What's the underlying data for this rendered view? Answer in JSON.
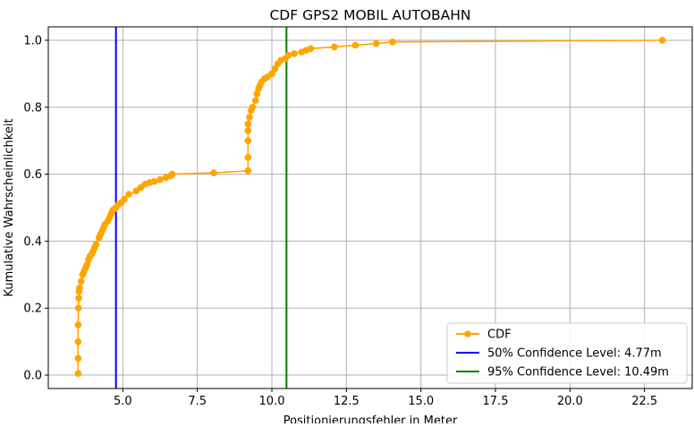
{
  "chart_data": {
    "type": "line",
    "title": "CDF GPS2 MOBIL AUTOBAHN",
    "xlabel": "Positionierungsfehler in Meter",
    "ylabel": "Kumulative Wahrscheinlichkeit",
    "xlim": [
      2.5,
      24.1
    ],
    "ylim": [
      -0.04,
      1.04
    ],
    "grid": true,
    "legend_position": "lower-right",
    "x_ticks": [
      "5.0",
      "7.5",
      "10.0",
      "12.5",
      "15.0",
      "17.5",
      "20.0",
      "22.5"
    ],
    "x_tick_values": [
      5.0,
      7.5,
      10.0,
      12.5,
      15.0,
      17.5,
      20.0,
      22.5
    ],
    "y_ticks": [
      "0.0",
      "0.2",
      "0.4",
      "0.6",
      "0.8",
      "1.0"
    ],
    "y_tick_values": [
      0.0,
      0.2,
      0.4,
      0.6,
      0.8,
      1.0
    ],
    "series": [
      {
        "name": "CDF",
        "color": "#FFA500",
        "marker": "circle",
        "x": [
          3.5,
          3.5,
          3.5,
          3.5,
          3.51,
          3.52,
          3.53,
          3.55,
          3.6,
          3.65,
          3.7,
          3.75,
          3.8,
          3.85,
          3.9,
          3.95,
          4.0,
          4.05,
          4.1,
          4.2,
          4.25,
          4.3,
          4.35,
          4.4,
          4.5,
          4.55,
          4.6,
          4.65,
          4.7,
          4.77,
          4.85,
          4.95,
          5.05,
          5.2,
          5.45,
          5.6,
          5.75,
          5.9,
          6.05,
          6.25,
          6.45,
          6.6,
          6.65,
          8.05,
          9.2,
          9.2,
          9.2,
          9.2,
          9.2,
          9.25,
          9.3,
          9.35,
          9.45,
          9.5,
          9.55,
          9.6,
          9.65,
          9.75,
          9.85,
          10.0,
          10.1,
          10.2,
          10.3,
          10.45,
          10.55,
          10.75,
          11.0,
          11.15,
          11.3,
          12.1,
          12.8,
          13.5,
          14.05,
          23.1
        ],
        "y": [
          0.005,
          0.05,
          0.1,
          0.15,
          0.2,
          0.23,
          0.25,
          0.26,
          0.28,
          0.3,
          0.31,
          0.32,
          0.33,
          0.345,
          0.355,
          0.36,
          0.37,
          0.38,
          0.39,
          0.41,
          0.42,
          0.43,
          0.44,
          0.45,
          0.46,
          0.47,
          0.48,
          0.49,
          0.495,
          0.5,
          0.51,
          0.515,
          0.525,
          0.54,
          0.55,
          0.56,
          0.57,
          0.575,
          0.578,
          0.584,
          0.59,
          0.595,
          0.6,
          0.604,
          0.61,
          0.65,
          0.7,
          0.73,
          0.75,
          0.77,
          0.79,
          0.8,
          0.82,
          0.84,
          0.855,
          0.865,
          0.875,
          0.885,
          0.89,
          0.9,
          0.915,
          0.93,
          0.94,
          0.945,
          0.955,
          0.96,
          0.965,
          0.97,
          0.975,
          0.98,
          0.985,
          0.99,
          0.995,
          1.0
        ]
      }
    ],
    "vlines": [
      {
        "name": "50% Confidence Level: 4.77m",
        "x": 4.77,
        "color": "#0000FF"
      },
      {
        "name": "95% Confidence Level: 10.49m",
        "x": 10.49,
        "color": "#008000"
      }
    ]
  }
}
